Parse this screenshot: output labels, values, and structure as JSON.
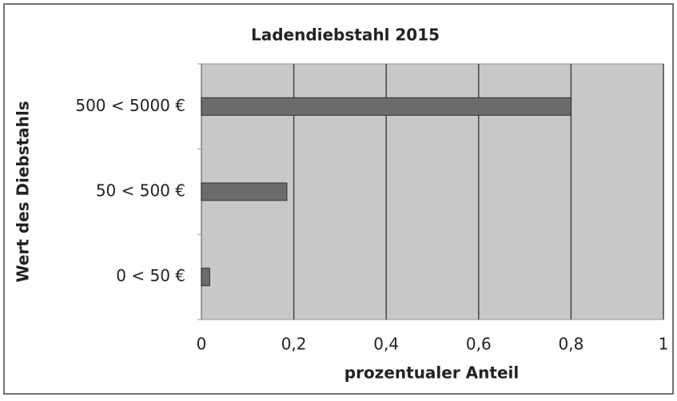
{
  "chart_data": {
    "type": "bar",
    "orientation": "horizontal",
    "title": "Ladendiebstahl 2015",
    "categories": [
      "500 < 5000 €",
      "50 < 500 €",
      "0 < 50 €"
    ],
    "values": [
      0.8,
      0.185,
      0.018
    ],
    "color": "#6b6b6b",
    "xlabel": "prozentualer Anteil",
    "ylabel": "Wert des Diebstahls",
    "xlim": [
      0,
      1
    ],
    "xticks": [
      0,
      {
        "value": 0.2,
        "label": "0,2"
      },
      {
        "value": 0.4,
        "label": "0,4"
      },
      {
        "value": 0.6,
        "label": "0,6"
      },
      {
        "value": 0.8,
        "label": "0,8"
      },
      1
    ],
    "grid": true
  }
}
